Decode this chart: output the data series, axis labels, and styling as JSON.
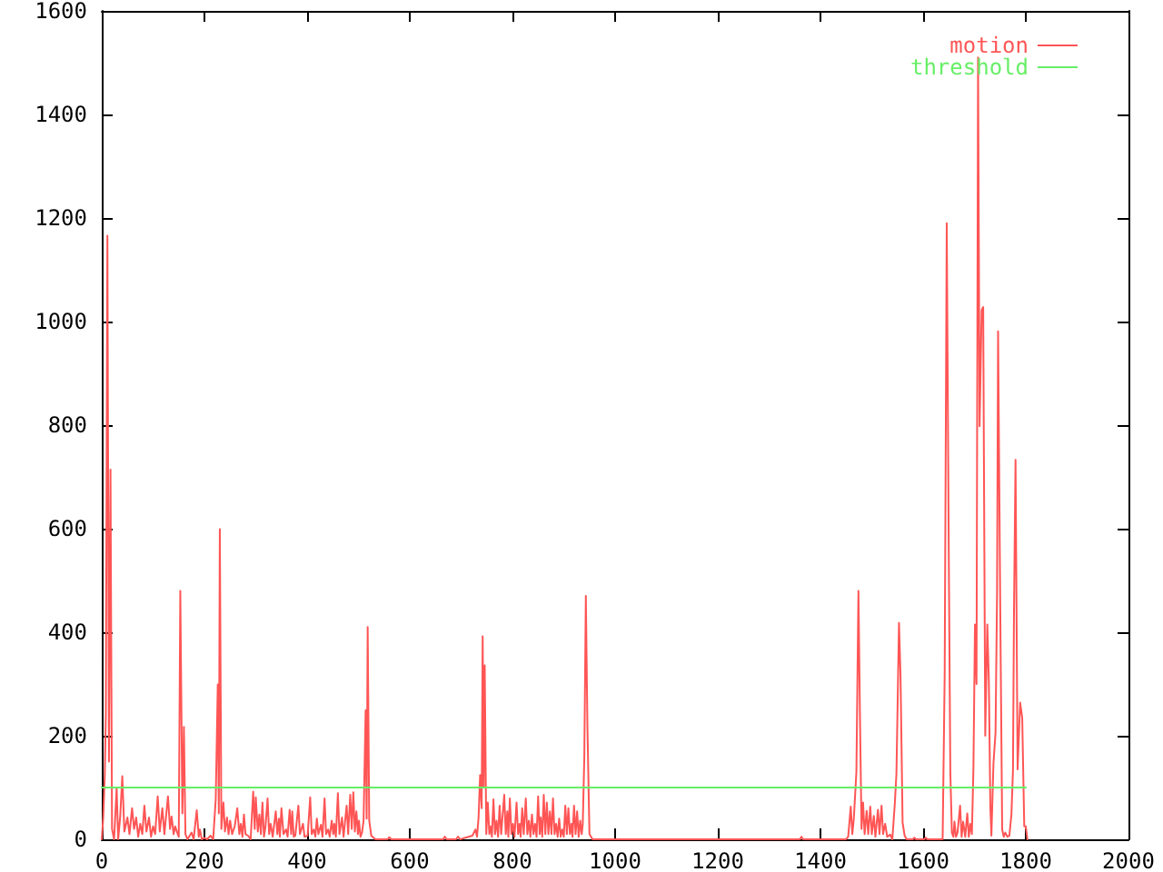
{
  "chart_data": {
    "type": "line",
    "xlim": [
      0,
      2000
    ],
    "xticks": [
      0,
      200,
      400,
      600,
      800,
      1000,
      1200,
      1400,
      1600,
      1800,
      2000
    ],
    "ylim": [
      0,
      1600
    ],
    "yticks": [
      0,
      200,
      400,
      600,
      800,
      1000,
      1200,
      1400,
      1600
    ],
    "grid": false,
    "legend": "top right",
    "marker": "none",
    "line_style": "solid",
    "series": [
      {
        "name": "motion",
        "color": "#ff5555",
        "x": [
          0,
          3,
          6,
          8,
          11,
          14,
          17,
          20,
          24,
          29,
          32,
          36,
          40,
          44,
          50,
          54,
          59,
          63,
          67,
          71,
          75,
          79,
          83,
          87,
          92,
          96,
          100,
          104,
          109,
          113,
          118,
          122,
          129,
          133,
          136,
          140,
          143,
          147,
          150,
          153,
          157,
          160,
          163,
          167,
          175,
          179,
          185,
          189,
          191,
          195,
          200,
          205,
          212,
          217,
          222,
          226,
          228,
          230,
          233,
          237,
          240,
          244,
          247,
          250,
          254,
          259,
          264,
          268,
          271,
          274,
          277,
          280,
          285,
          290,
          295,
          298,
          300,
          304,
          307,
          310,
          313,
          316,
          319,
          323,
          326,
          329,
          333,
          339,
          342,
          345,
          347,
          350,
          354,
          359,
          362,
          366,
          369,
          371,
          374,
          377,
          383,
          386,
          392,
          395,
          401,
          406,
          409,
          413,
          416,
          419,
          422,
          427,
          430,
          434,
          437,
          441,
          444,
          448,
          451,
          453,
          456,
          460,
          463,
          468,
          471,
          477,
          480,
          484,
          487,
          490,
          493,
          496,
          499,
          501,
          504,
          507,
          510,
          514,
          516,
          518,
          521,
          525,
          533,
          557,
          560,
          564,
          665,
          668,
          672,
          690,
          694,
          698,
          722,
          728,
          731,
          734,
          737,
          740,
          742,
          744,
          746,
          749,
          752,
          755,
          758,
          760,
          763,
          766,
          769,
          772,
          775,
          778,
          784,
          787,
          790,
          792,
          795,
          798,
          801,
          804,
          808,
          811,
          814,
          816,
          819,
          822,
          826,
          829,
          832,
          835,
          838,
          841,
          844,
          847,
          850,
          853,
          855,
          858,
          861,
          864,
          867,
          870,
          873,
          876,
          879,
          882,
          885,
          888,
          891,
          894,
          897,
          900,
          903,
          906,
          909,
          912,
          915,
          917,
          920,
          923,
          926,
          929,
          932,
          935,
          937,
          940,
          943,
          946,
          950,
          956,
          1360,
          1363,
          1366,
          1450,
          1454,
          1459,
          1462,
          1465,
          1470,
          1474,
          1477,
          1480,
          1483,
          1486,
          1490,
          1493,
          1497,
          1500,
          1504,
          1507,
          1512,
          1515,
          1519,
          1522,
          1526,
          1530,
          1536,
          1540,
          1545,
          1548,
          1553,
          1556,
          1560,
          1564,
          1568,
          1580,
          1583,
          1586,
          1602,
          1605,
          1608,
          1638,
          1642,
          1646,
          1650,
          1653,
          1656,
          1659,
          1661,
          1664,
          1667,
          1672,
          1675,
          1678,
          1682,
          1686,
          1689,
          1692,
          1695,
          1698,
          1701,
          1704,
          1707,
          1710,
          1714,
          1717,
          1721,
          1725,
          1728,
          1731,
          1733,
          1737,
          1741,
          1744,
          1746,
          1750,
          1754,
          1757,
          1760,
          1764,
          1768,
          1772,
          1775,
          1777,
          1780,
          1784,
          1789,
          1793,
          1797,
          1800,
          1803
        ],
        "values": [
          0,
          44,
          128,
          245,
          1166,
          150,
          714,
          20,
          0,
          98,
          0,
          45,
          122,
          15,
          42,
          10,
          60,
          20,
          42,
          5,
          30,
          10,
          65,
          15,
          42,
          5,
          25,
          10,
          83,
          15,
          60,
          10,
          83,
          20,
          44,
          10,
          25,
          13,
          5,
          480,
          50,
          217,
          10,
          0,
          13,
          0,
          56,
          5,
          19,
          0,
          3,
          0,
          7,
          0,
          77,
          299,
          50,
          599,
          20,
          71,
          15,
          42,
          10,
          36,
          10,
          25,
          60,
          10,
          30,
          5,
          48,
          10,
          7,
          0,
          92,
          20,
          81,
          15,
          48,
          10,
          71,
          5,
          25,
          79,
          10,
          30,
          5,
          54,
          10,
          40,
          5,
          60,
          10,
          19,
          5,
          57,
          10,
          54,
          5,
          7,
          65,
          10,
          30,
          5,
          7,
          81,
          10,
          19,
          5,
          40,
          10,
          28,
          5,
          79,
          10,
          19,
          5,
          36,
          10,
          30,
          5,
          89,
          10,
          42,
          5,
          65,
          10,
          86,
          20,
          91,
          15,
          54,
          10,
          36,
          5,
          13,
          36,
          249,
          40,
          410,
          36,
          7,
          0,
          0,
          4,
          0,
          0,
          5,
          0,
          0,
          5,
          0,
          7,
          19,
          5,
          42,
          124,
          60,
          392,
          100,
          336,
          10,
          71,
          10,
          25,
          5,
          77,
          10,
          36,
          5,
          65,
          10,
          86,
          10,
          54,
          5,
          79,
          10,
          30,
          5,
          71,
          10,
          30,
          5,
          60,
          10,
          79,
          10,
          36,
          5,
          48,
          10,
          30,
          5,
          83,
          10,
          42,
          5,
          86,
          10,
          71,
          10,
          54,
          10,
          79,
          10,
          30,
          5,
          40,
          5,
          19,
          5,
          65,
          10,
          60,
          10,
          30,
          5,
          65,
          10,
          54,
          5,
          36,
          10,
          30,
          159,
          470,
          222,
          10,
          0,
          0,
          5,
          0,
          0,
          5,
          63,
          10,
          40,
          130,
          480,
          235,
          20,
          71,
          10,
          55,
          10,
          63,
          10,
          45,
          5,
          57,
          10,
          65,
          10,
          30,
          5,
          9,
          0,
          71,
          127,
          418,
          315,
          32,
          7,
          0,
          0,
          3,
          0,
          0,
          3,
          0,
          0,
          320,
          1190,
          544,
          130,
          13,
          5,
          34,
          5,
          13,
          65,
          5,
          34,
          5,
          50,
          5,
          30,
          10,
          138,
          415,
          300,
          1510,
          798,
          1022,
          1028,
          200,
          415,
          305,
          60,
          7,
          147,
          205,
          474,
          981,
          474,
          19,
          5,
          13,
          5,
          7,
          48,
          133,
          441,
          733,
          135,
          264,
          235,
          25,
          25,
          0
        ]
      },
      {
        "name": "threshold",
        "color": "#66ee66",
        "x": [
          0,
          1800
        ],
        "values": [
          100,
          100
        ]
      }
    ]
  }
}
